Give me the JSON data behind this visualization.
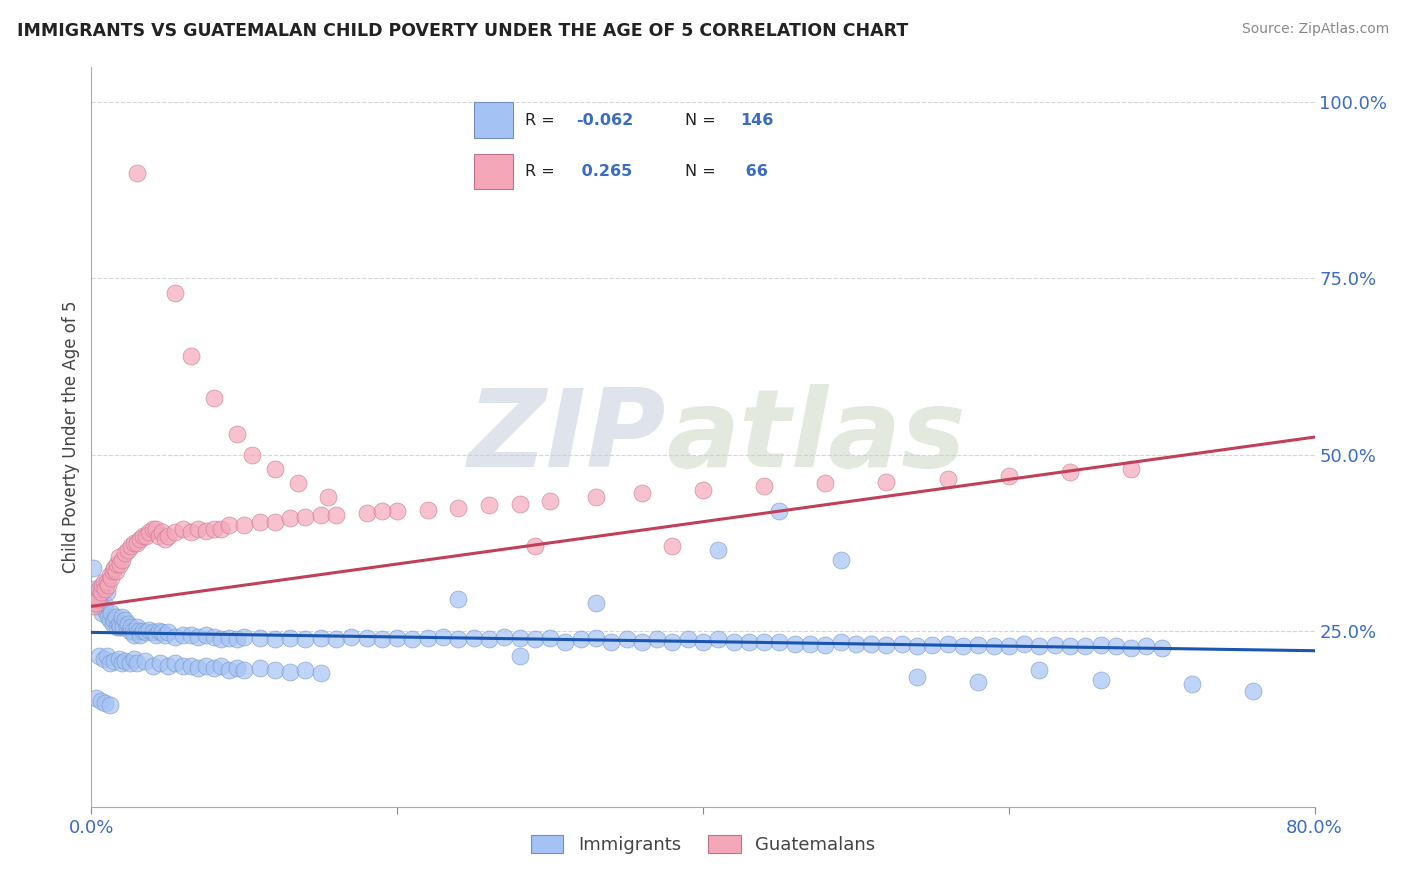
{
  "title": "IMMIGRANTS VS GUATEMALAN CHILD POVERTY UNDER THE AGE OF 5 CORRELATION CHART",
  "source": "Source: ZipAtlas.com",
  "ylabel": "Child Poverty Under the Age of 5",
  "legend_labels": [
    "Immigrants",
    "Guatemalans"
  ],
  "blue_color": "#a4c2f4",
  "pink_color": "#f4a7b9",
  "blue_line_color": "#1a56b0",
  "pink_line_color": "#c0405a",
  "watermark_zip": "ZIP",
  "watermark_atlas": "atlas",
  "background_color": "#ffffff",
  "grid_color": "#cccccc",
  "xlim": [
    0.0,
    0.8
  ],
  "ylim": [
    0.0,
    1.05
  ],
  "blue_trend_x": [
    0.0,
    0.8
  ],
  "blue_trend_y": [
    0.248,
    0.222
  ],
  "pink_trend_x": [
    0.0,
    0.8
  ],
  "pink_trend_y": [
    0.285,
    0.525
  ],
  "immigrants_x": [
    0.001,
    0.002,
    0.003,
    0.004,
    0.005,
    0.006,
    0.007,
    0.008,
    0.009,
    0.01,
    0.011,
    0.012,
    0.013,
    0.014,
    0.015,
    0.016,
    0.017,
    0.018,
    0.019,
    0.02,
    0.021,
    0.022,
    0.023,
    0.024,
    0.025,
    0.026,
    0.027,
    0.028,
    0.03,
    0.031,
    0.032,
    0.034,
    0.036,
    0.038,
    0.04,
    0.042,
    0.044,
    0.046,
    0.048,
    0.05,
    0.055,
    0.06,
    0.065,
    0.07,
    0.075,
    0.08,
    0.085,
    0.09,
    0.095,
    0.1,
    0.11,
    0.12,
    0.13,
    0.14,
    0.15,
    0.16,
    0.17,
    0.18,
    0.19,
    0.2,
    0.21,
    0.22,
    0.23,
    0.24,
    0.25,
    0.26,
    0.27,
    0.28,
    0.29,
    0.3,
    0.31,
    0.32,
    0.33,
    0.34,
    0.35,
    0.36,
    0.37,
    0.38,
    0.39,
    0.4,
    0.41,
    0.42,
    0.43,
    0.44,
    0.45,
    0.46,
    0.47,
    0.48,
    0.49,
    0.5,
    0.51,
    0.52,
    0.53,
    0.54,
    0.55,
    0.56,
    0.57,
    0.58,
    0.59,
    0.6,
    0.61,
    0.62,
    0.63,
    0.64,
    0.65,
    0.66,
    0.67,
    0.68,
    0.69,
    0.7,
    0.005,
    0.008,
    0.01,
    0.012,
    0.015,
    0.018,
    0.02,
    0.022,
    0.025,
    0.028,
    0.03,
    0.035,
    0.04,
    0.045,
    0.05,
    0.055,
    0.06,
    0.065,
    0.07,
    0.075,
    0.08,
    0.085,
    0.09,
    0.095,
    0.1,
    0.11,
    0.12,
    0.13,
    0.14,
    0.15,
    0.003,
    0.006,
    0.009,
    0.012,
    0.54,
    0.58,
    0.62,
    0.66,
    0.72,
    0.76,
    0.41,
    0.45,
    0.49,
    0.33,
    0.28,
    0.24
  ],
  "immigrants_y": [
    0.34,
    0.31,
    0.295,
    0.305,
    0.285,
    0.3,
    0.275,
    0.29,
    0.28,
    0.305,
    0.27,
    0.265,
    0.275,
    0.26,
    0.265,
    0.27,
    0.255,
    0.26,
    0.255,
    0.27,
    0.255,
    0.265,
    0.255,
    0.26,
    0.25,
    0.255,
    0.25,
    0.245,
    0.255,
    0.25,
    0.245,
    0.25,
    0.248,
    0.252,
    0.248,
    0.245,
    0.25,
    0.248,
    0.245,
    0.248,
    0.242,
    0.245,
    0.245,
    0.242,
    0.245,
    0.242,
    0.238,
    0.24,
    0.238,
    0.242,
    0.24,
    0.238,
    0.24,
    0.238,
    0.24,
    0.238,
    0.242,
    0.24,
    0.238,
    0.24,
    0.238,
    0.24,
    0.242,
    0.238,
    0.24,
    0.238,
    0.242,
    0.24,
    0.238,
    0.24,
    0.235,
    0.238,
    0.24,
    0.235,
    0.238,
    0.235,
    0.238,
    0.235,
    0.238,
    0.235,
    0.238,
    0.235,
    0.235,
    0.235,
    0.235,
    0.232,
    0.232,
    0.23,
    0.235,
    0.232,
    0.232,
    0.23,
    0.232,
    0.228,
    0.23,
    0.232,
    0.228,
    0.23,
    0.228,
    0.228,
    0.232,
    0.228,
    0.23,
    0.228,
    0.228,
    0.23,
    0.228,
    0.226,
    0.228,
    0.226,
    0.215,
    0.21,
    0.215,
    0.205,
    0.208,
    0.21,
    0.205,
    0.208,
    0.205,
    0.21,
    0.205,
    0.208,
    0.2,
    0.205,
    0.2,
    0.205,
    0.2,
    0.2,
    0.198,
    0.2,
    0.198,
    0.2,
    0.195,
    0.198,
    0.195,
    0.198,
    0.195,
    0.192,
    0.195,
    0.19,
    0.155,
    0.15,
    0.148,
    0.145,
    0.185,
    0.178,
    0.195,
    0.18,
    0.175,
    0.165,
    0.365,
    0.42,
    0.35,
    0.29,
    0.215,
    0.295
  ],
  "guatemalans_x": [
    0.002,
    0.003,
    0.004,
    0.005,
    0.006,
    0.007,
    0.008,
    0.009,
    0.01,
    0.011,
    0.012,
    0.013,
    0.014,
    0.015,
    0.016,
    0.017,
    0.018,
    0.019,
    0.02,
    0.022,
    0.024,
    0.026,
    0.028,
    0.03,
    0.032,
    0.034,
    0.036,
    0.038,
    0.04,
    0.042,
    0.044,
    0.046,
    0.048,
    0.05,
    0.055,
    0.06,
    0.065,
    0.07,
    0.075,
    0.08,
    0.085,
    0.09,
    0.1,
    0.11,
    0.12,
    0.13,
    0.14,
    0.15,
    0.16,
    0.18,
    0.2,
    0.22,
    0.24,
    0.26,
    0.28,
    0.3,
    0.33,
    0.36,
    0.4,
    0.44,
    0.48,
    0.52,
    0.56,
    0.6,
    0.64,
    0.68
  ],
  "guatemalans_y": [
    0.285,
    0.29,
    0.295,
    0.31,
    0.305,
    0.315,
    0.32,
    0.31,
    0.32,
    0.315,
    0.33,
    0.325,
    0.335,
    0.34,
    0.335,
    0.345,
    0.355,
    0.345,
    0.35,
    0.36,
    0.365,
    0.37,
    0.375,
    0.375,
    0.38,
    0.385,
    0.385,
    0.39,
    0.395,
    0.395,
    0.385,
    0.39,
    0.38,
    0.385,
    0.39,
    0.395,
    0.39,
    0.395,
    0.392,
    0.395,
    0.395,
    0.4,
    0.4,
    0.405,
    0.405,
    0.41,
    0.412,
    0.415,
    0.415,
    0.418,
    0.42,
    0.422,
    0.425,
    0.428,
    0.43,
    0.435,
    0.44,
    0.445,
    0.45,
    0.455,
    0.46,
    0.462,
    0.465,
    0.47,
    0.475,
    0.48
  ],
  "guatemalans_outlier_x": [
    0.03,
    0.055,
    0.065,
    0.08,
    0.095,
    0.105,
    0.12,
    0.135,
    0.155,
    0.19,
    0.29,
    0.38
  ],
  "guatemalans_outlier_y": [
    0.9,
    0.73,
    0.64,
    0.58,
    0.53,
    0.5,
    0.48,
    0.46,
    0.44,
    0.42,
    0.37,
    0.37
  ]
}
